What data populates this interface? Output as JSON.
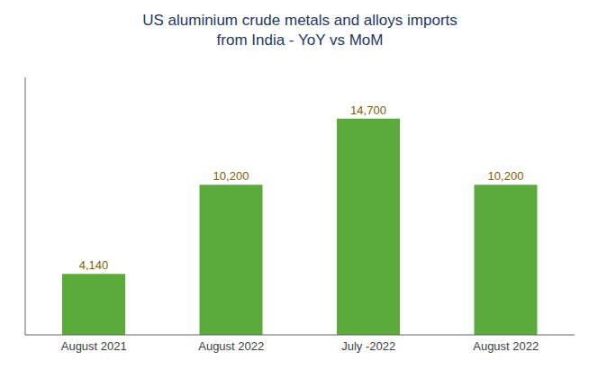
{
  "chart_data": {
    "type": "bar",
    "title": "US aluminium crude metals and alloys imports\nfrom India - YoY vs MoM",
    "categories": [
      "August 2021",
      "August 2022",
      "July -2022",
      "August 2022"
    ],
    "values": [
      4140,
      10200,
      14700,
      10200
    ],
    "value_labels": [
      "4,140",
      "10,200",
      "14,700",
      "10,200"
    ],
    "color": "#5aaa3c",
    "ylim": [
      0,
      17500
    ],
    "grid": false,
    "data_labels": true,
    "tick_labels": "x"
  }
}
